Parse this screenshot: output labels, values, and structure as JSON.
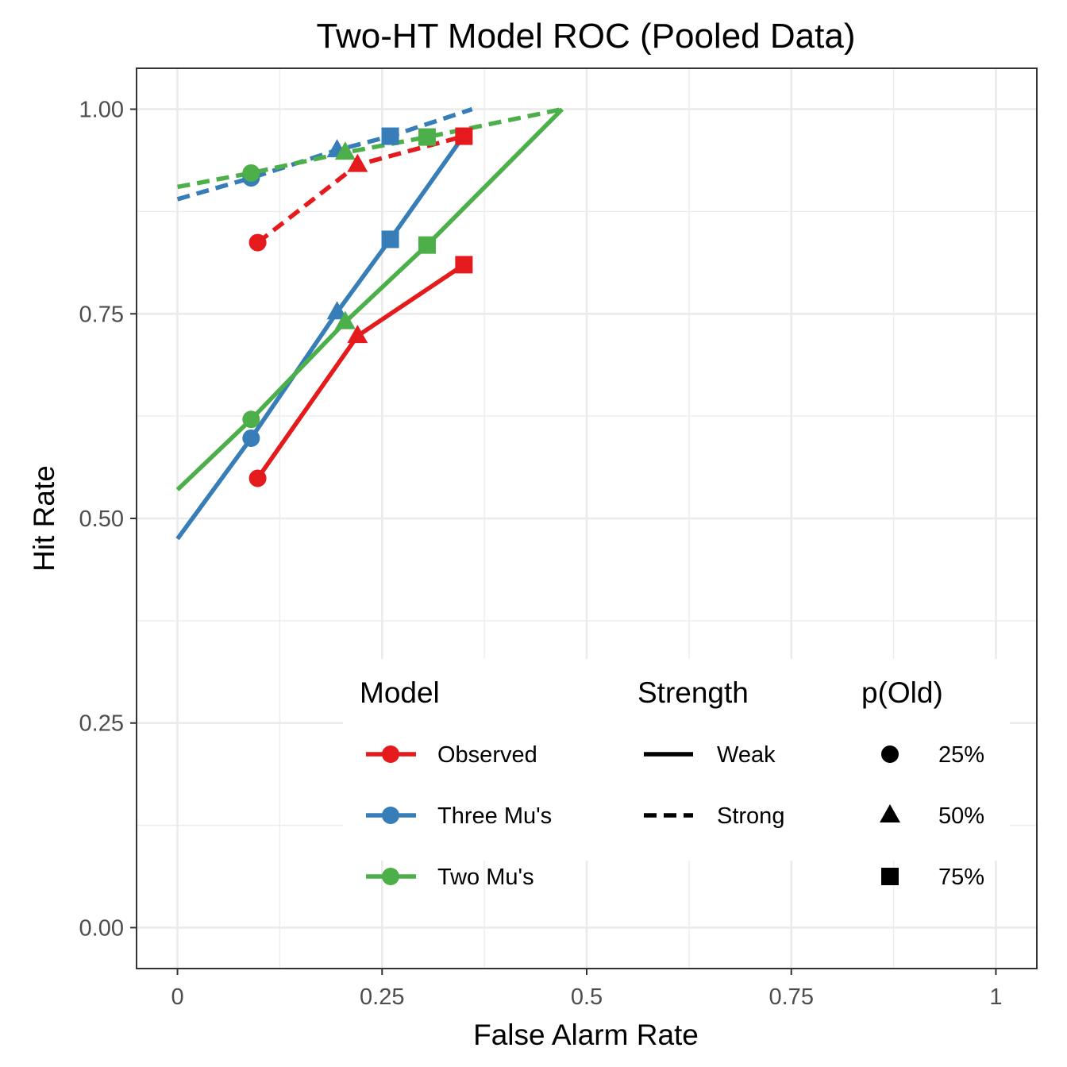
{
  "chart_data": {
    "type": "line",
    "title": "Two-HT Model ROC (Pooled Data)",
    "xlabel": "False Alarm Rate",
    "ylabel": "Hit Rate",
    "xlim": [
      -0.05,
      1.05
    ],
    "ylim": [
      -0.05,
      1.05
    ],
    "x_ticks": [
      {
        "value": 0,
        "label": "0"
      },
      {
        "value": 0.25,
        "label": "0.25"
      },
      {
        "value": 0.5,
        "label": "0.5"
      },
      {
        "value": 0.75,
        "label": "0.75"
      },
      {
        "value": 1,
        "label": "1"
      }
    ],
    "y_ticks": [
      {
        "value": 0,
        "label": "0.00"
      },
      {
        "value": 0.25,
        "label": "0.25"
      },
      {
        "value": 0.5,
        "label": "0.50"
      },
      {
        "value": 0.75,
        "label": "0.75"
      },
      {
        "value": 1,
        "label": "1.00"
      }
    ],
    "grid": true,
    "legend_placement": "bottom-right inside",
    "colors": {
      "Observed": "#E41A1C",
      "Three Mu's": "#377EB8",
      "Two Mu's": "#4DAF4A"
    },
    "legend": {
      "model_title": "Model",
      "model_items": [
        "Observed",
        "Three Mu's",
        "Two Mu's"
      ],
      "strength_title": "Strength",
      "strength_items": [
        "Weak",
        "Strong"
      ],
      "pold_title": "p(Old)",
      "pold_items": [
        "25%",
        "50%",
        "75%"
      ]
    },
    "lines": [
      {
        "model": "Three Mu's",
        "strength": "Weak",
        "points": [
          [
            0,
            0.475
          ],
          [
            0.09,
            0.598
          ],
          [
            0.195,
            0.752
          ],
          [
            0.26,
            0.841
          ],
          [
            0.35,
            0.968
          ]
        ]
      },
      {
        "model": "Two Mu's",
        "strength": "Weak",
        "points": [
          [
            0,
            0.535
          ],
          [
            0.09,
            0.621
          ],
          [
            0.205,
            0.74
          ],
          [
            0.305,
            0.834
          ],
          [
            0.47,
            1.0
          ]
        ]
      },
      {
        "model": "Observed",
        "strength": "Weak",
        "points": [
          [
            0.098,
            0.549
          ],
          [
            0.22,
            0.723
          ],
          [
            0.35,
            0.81
          ]
        ]
      },
      {
        "model": "Three Mu's",
        "strength": "Strong",
        "points": [
          [
            0,
            0.89
          ],
          [
            0.09,
            0.916
          ],
          [
            0.195,
            0.95
          ],
          [
            0.26,
            0.967
          ],
          [
            0.36,
            1.0
          ]
        ]
      },
      {
        "model": "Two Mu's",
        "strength": "Strong",
        "points": [
          [
            0,
            0.905
          ],
          [
            0.09,
            0.922
          ],
          [
            0.205,
            0.947
          ],
          [
            0.305,
            0.966
          ],
          [
            0.47,
            1.0
          ]
        ]
      },
      {
        "model": "Observed",
        "strength": "Strong",
        "points": [
          [
            0.098,
            0.837
          ],
          [
            0.22,
            0.932
          ],
          [
            0.35,
            0.967
          ]
        ]
      }
    ],
    "points": [
      {
        "model": "Three Mu's",
        "strength": "Weak",
        "p_old": "25%",
        "x": 0.09,
        "y": 0.598
      },
      {
        "model": "Three Mu's",
        "strength": "Weak",
        "p_old": "50%",
        "x": 0.195,
        "y": 0.752
      },
      {
        "model": "Three Mu's",
        "strength": "Weak",
        "p_old": "75%",
        "x": 0.26,
        "y": 0.841
      },
      {
        "model": "Two Mu's",
        "strength": "Weak",
        "p_old": "25%",
        "x": 0.09,
        "y": 0.621
      },
      {
        "model": "Two Mu's",
        "strength": "Weak",
        "p_old": "50%",
        "x": 0.205,
        "y": 0.74
      },
      {
        "model": "Two Mu's",
        "strength": "Weak",
        "p_old": "75%",
        "x": 0.305,
        "y": 0.834
      },
      {
        "model": "Observed",
        "strength": "Weak",
        "p_old": "25%",
        "x": 0.098,
        "y": 0.549
      },
      {
        "model": "Observed",
        "strength": "Weak",
        "p_old": "50%",
        "x": 0.22,
        "y": 0.723
      },
      {
        "model": "Observed",
        "strength": "Weak",
        "p_old": "75%",
        "x": 0.35,
        "y": 0.81
      },
      {
        "model": "Three Mu's",
        "strength": "Strong",
        "p_old": "25%",
        "x": 0.09,
        "y": 0.916
      },
      {
        "model": "Three Mu's",
        "strength": "Strong",
        "p_old": "50%",
        "x": 0.195,
        "y": 0.95
      },
      {
        "model": "Three Mu's",
        "strength": "Strong",
        "p_old": "75%",
        "x": 0.26,
        "y": 0.967
      },
      {
        "model": "Two Mu's",
        "strength": "Strong",
        "p_old": "25%",
        "x": 0.09,
        "y": 0.922
      },
      {
        "model": "Two Mu's",
        "strength": "Strong",
        "p_old": "50%",
        "x": 0.205,
        "y": 0.947
      },
      {
        "model": "Two Mu's",
        "strength": "Strong",
        "p_old": "75%",
        "x": 0.305,
        "y": 0.966
      },
      {
        "model": "Observed",
        "strength": "Strong",
        "p_old": "25%",
        "x": 0.098,
        "y": 0.837
      },
      {
        "model": "Observed",
        "strength": "Strong",
        "p_old": "50%",
        "x": 0.22,
        "y": 0.932
      },
      {
        "model": "Observed",
        "strength": "Strong",
        "p_old": "75%",
        "x": 0.35,
        "y": 0.967
      }
    ]
  }
}
